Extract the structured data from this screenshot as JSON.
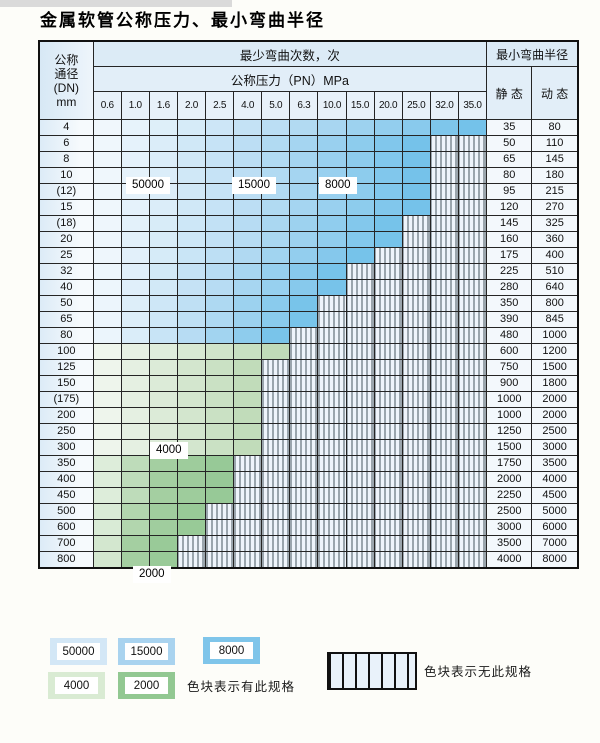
{
  "title": "金属软管公称压力、最小弯曲半径",
  "table": {
    "header": {
      "dn_lines": [
        "公称",
        "通径",
        "(DN)",
        "mm"
      ],
      "cycles_title": "最少弯曲次数，次",
      "radius_title": "最小弯曲半径",
      "pn_title": "公称压力（PN）MPa",
      "pn_columns": [
        "0.6",
        "1.0",
        "1.6",
        "2.0",
        "2.5",
        "4.0",
        "5.0",
        "6.3",
        "10.0",
        "15.0",
        "20.0",
        "25.0",
        "32.0",
        "35.0"
      ],
      "static_label": "静 态",
      "dynamic_label": "动 态"
    },
    "rows": [
      {
        "dn": "4",
        "max_pn": "35.0",
        "palette": "blue",
        "static": "35",
        "dynamic": "80"
      },
      {
        "dn": "6",
        "max_pn": "25.0",
        "palette": "blue",
        "static": "50",
        "dynamic": "110"
      },
      {
        "dn": "8",
        "max_pn": "25.0",
        "palette": "blue",
        "static": "65",
        "dynamic": "145"
      },
      {
        "dn": "10",
        "max_pn": "25.0",
        "palette": "blue",
        "static": "80",
        "dynamic": "180"
      },
      {
        "dn": "(12)",
        "max_pn": "25.0",
        "palette": "blue",
        "static": "95",
        "dynamic": "215"
      },
      {
        "dn": "15",
        "max_pn": "25.0",
        "palette": "blue",
        "static": "120",
        "dynamic": "270"
      },
      {
        "dn": "(18)",
        "max_pn": "20.0",
        "palette": "blue",
        "static": "145",
        "dynamic": "325"
      },
      {
        "dn": "20",
        "max_pn": "20.0",
        "palette": "blue",
        "static": "160",
        "dynamic": "360"
      },
      {
        "dn": "25",
        "max_pn": "15.0",
        "palette": "blue",
        "static": "175",
        "dynamic": "400"
      },
      {
        "dn": "32",
        "max_pn": "10.0",
        "palette": "blue",
        "static": "225",
        "dynamic": "510"
      },
      {
        "dn": "40",
        "max_pn": "10.0",
        "palette": "blue",
        "static": "280",
        "dynamic": "640"
      },
      {
        "dn": "50",
        "max_pn": "6.3",
        "palette": "blue",
        "static": "350",
        "dynamic": "800"
      },
      {
        "dn": "65",
        "max_pn": "6.3",
        "palette": "blue",
        "static": "390",
        "dynamic": "845"
      },
      {
        "dn": "80",
        "max_pn": "5.0",
        "palette": "blue",
        "static": "480",
        "dynamic": "1000"
      },
      {
        "dn": "100",
        "max_pn": "5.0",
        "palette": "green_light",
        "static": "600",
        "dynamic": "1200"
      },
      {
        "dn": "125",
        "max_pn": "4.0",
        "palette": "green_light",
        "static": "750",
        "dynamic": "1500"
      },
      {
        "dn": "150",
        "max_pn": "4.0",
        "palette": "green_light",
        "static": "900",
        "dynamic": "1800"
      },
      {
        "dn": "(175)",
        "max_pn": "4.0",
        "palette": "green_light",
        "static": "1000",
        "dynamic": "2000"
      },
      {
        "dn": "200",
        "max_pn": "4.0",
        "palette": "green_light",
        "static": "1000",
        "dynamic": "2000"
      },
      {
        "dn": "250",
        "max_pn": "4.0",
        "palette": "green_light",
        "static": "1250",
        "dynamic": "2500"
      },
      {
        "dn": "300",
        "max_pn": "4.0",
        "palette": "green_light",
        "static": "1500",
        "dynamic": "3000"
      },
      {
        "dn": "350",
        "max_pn": "2.5",
        "palette": "green_dark",
        "static": "1750",
        "dynamic": "3500"
      },
      {
        "dn": "400",
        "max_pn": "2.5",
        "palette": "green_dark",
        "static": "2000",
        "dynamic": "4000"
      },
      {
        "dn": "450",
        "max_pn": "2.5",
        "palette": "green_dark",
        "static": "2250",
        "dynamic": "4500"
      },
      {
        "dn": "500",
        "max_pn": "2.0",
        "palette": "green_dark",
        "static": "2500",
        "dynamic": "5000"
      },
      {
        "dn": "600",
        "max_pn": "2.0",
        "palette": "green_dark",
        "static": "3000",
        "dynamic": "6000"
      },
      {
        "dn": "700",
        "max_pn": "1.6",
        "palette": "green_dark",
        "static": "3500",
        "dynamic": "7000"
      },
      {
        "dn": "800",
        "max_pn": "1.6",
        "palette": "green_dark",
        "static": "4000",
        "dynamic": "8000"
      }
    ],
    "zone_labels": [
      "50000",
      "15000",
      "8000",
      "4000",
      "2000"
    ]
  },
  "legend": {
    "blocks": [
      {
        "label": "50000",
        "color": "#d3e7f6"
      },
      {
        "label": "15000",
        "color": "#a9d3ef"
      },
      {
        "label": "8000",
        "color": "#7fc5ea"
      },
      {
        "label": "4000",
        "color": "#d9ebd3"
      },
      {
        "label": "2000",
        "color": "#92c892"
      }
    ],
    "has_spec_caption": "色块表示有此规格",
    "no_spec_caption": "色块表示无此规格"
  },
  "colors": {
    "blue_end": "#6fc0e9",
    "blue_mid": "#b7dcf3",
    "green_light_end": "#bcd9b5",
    "green_dark_end": "#94c894",
    "stripe_line": "#45565f",
    "cell_bg": "#eef4fb",
    "border": "#252525"
  }
}
